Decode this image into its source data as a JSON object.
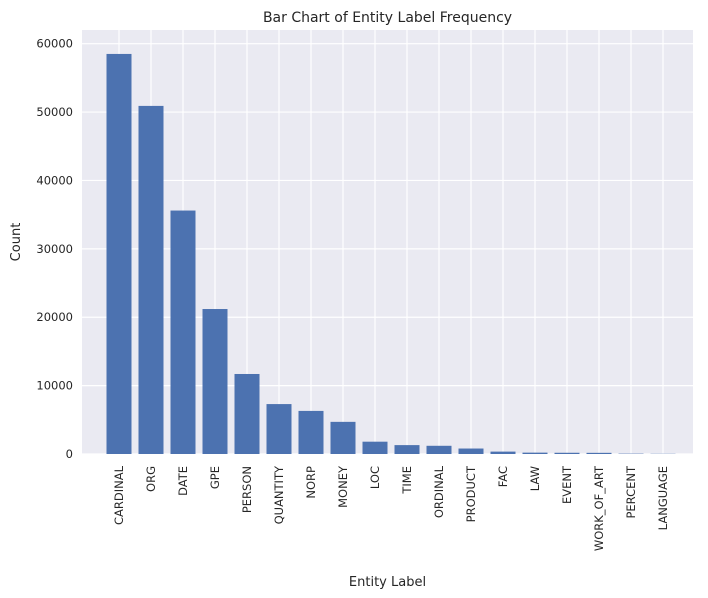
{
  "chart_data": {
    "type": "bar",
    "title": "Bar Chart of Entity Label Frequency",
    "xlabel": "Entity Label",
    "ylabel": "Count",
    "categories": [
      "CARDINAL",
      "ORG",
      "DATE",
      "GPE",
      "PERSON",
      "QUANTITY",
      "NORP",
      "MONEY",
      "LOC",
      "TIME",
      "ORDINAL",
      "PRODUCT",
      "FAC",
      "LAW",
      "EVENT",
      "WORK_OF_ART",
      "PERCENT",
      "LANGUAGE"
    ],
    "values": [
      58500,
      50900,
      35600,
      21200,
      11700,
      7300,
      6300,
      4700,
      1800,
      1300,
      1200,
      800,
      350,
      200,
      180,
      170,
      50,
      30
    ],
    "ylim": [
      0,
      62000
    ],
    "yticks": [
      0,
      10000,
      20000,
      30000,
      40000,
      50000,
      60000
    ],
    "grid": true,
    "colors": {
      "bar": "#4c72b0",
      "plot_background": "#eaeaf2",
      "grid": "#ffffff",
      "text": "#262626"
    }
  }
}
